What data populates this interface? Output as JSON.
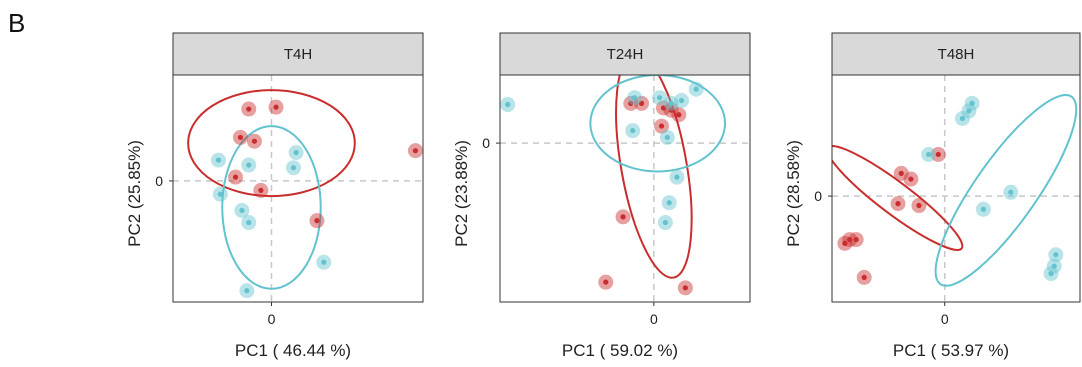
{
  "figure_label": "B",
  "colors": {
    "red": "#c92d2d",
    "cyan": "#62c3cf",
    "strip_bg": "#d9d9d9",
    "ref_line": "#c8c8c8"
  },
  "chart_data": [
    {
      "type": "scatter",
      "title": "T4H",
      "xlabel": "PC1 ( 46.44 %)",
      "ylabel": "PC2  (25.85%)",
      "x_ticks": [
        0
      ],
      "y_ticks": [
        0
      ],
      "xlim": [
        -2.6,
        4.0
      ],
      "ylim": [
        -3.2,
        2.8
      ],
      "grid": false,
      "ref_lines": [
        0,
        0
      ],
      "series": [
        {
          "color": "red",
          "points": [
            [
              -0.6,
              1.9
            ],
            [
              0.12,
              1.95
            ],
            [
              -0.82,
              1.15
            ],
            [
              -0.45,
              1.05
            ],
            [
              -0.95,
              0.1
            ],
            [
              -0.28,
              -0.25
            ],
            [
              1.2,
              -1.05
            ],
            [
              3.8,
              0.8
            ]
          ],
          "ellipse": {
            "cx": 0.0,
            "cy": 1.0,
            "rx": 2.2,
            "ry": 1.4,
            "angle": 0
          }
        },
        {
          "color": "cyan",
          "points": [
            [
              -1.4,
              0.55
            ],
            [
              -0.6,
              0.42
            ],
            [
              0.65,
              0.75
            ],
            [
              0.58,
              0.35
            ],
            [
              -1.35,
              -0.35
            ],
            [
              -0.78,
              -0.78
            ],
            [
              -0.6,
              -1.1
            ],
            [
              1.38,
              -2.15
            ],
            [
              -0.65,
              -2.9
            ]
          ],
          "ellipse": {
            "cx": 0.0,
            "cy": -0.7,
            "rx": 1.3,
            "ry": 2.15,
            "angle": 0
          }
        }
      ]
    },
    {
      "type": "scatter",
      "title": "T24H",
      "xlabel": "PC1 ( 59.02 %)",
      "ylabel": "PC2  (23.88%)",
      "x_ticks": [
        0
      ],
      "y_ticks": [
        0
      ],
      "xlim": [
        -4.0,
        2.5
      ],
      "ylim": [
        -2.8,
        1.2
      ],
      "grid": false,
      "ref_lines": [
        0,
        0
      ],
      "series": [
        {
          "color": "red",
          "points": [
            [
              -0.6,
              0.7
            ],
            [
              -0.32,
              0.7
            ],
            [
              0.25,
              0.62
            ],
            [
              0.45,
              0.58
            ],
            [
              0.65,
              0.5
            ],
            [
              0.2,
              0.3
            ],
            [
              -0.8,
              -1.3
            ],
            [
              -1.25,
              -2.45
            ],
            [
              0.82,
              -2.55
            ]
          ],
          "ellipse": {
            "cx": 0.0,
            "cy": -0.4,
            "rx": 0.85,
            "ry": 2.0,
            "angle": 10
          }
        },
        {
          "color": "cyan",
          "points": [
            [
              -3.8,
              0.68
            ],
            [
              -0.5,
              0.8
            ],
            [
              0.15,
              0.8
            ],
            [
              0.45,
              0.7
            ],
            [
              0.72,
              0.75
            ],
            [
              1.1,
              0.95
            ],
            [
              -0.55,
              0.22
            ],
            [
              0.35,
              0.1
            ],
            [
              0.6,
              -0.6
            ],
            [
              0.4,
              -1.05
            ],
            [
              0.3,
              -1.4
            ]
          ],
          "ellipse": {
            "cx": 0.1,
            "cy": 0.35,
            "rx": 1.75,
            "ry": 0.85,
            "angle": 0
          }
        }
      ]
    },
    {
      "type": "scatter",
      "title": "T48H",
      "xlabel": "PC1 ( 53.97 %)",
      "ylabel": "PC2  (28.58%)",
      "x_ticks": [
        0
      ],
      "y_ticks": [
        0
      ],
      "xlim": [
        -3.5,
        4.2
      ],
      "ylim": [
        -2.8,
        3.2
      ],
      "grid": false,
      "ref_lines": [
        0,
        0
      ],
      "series": [
        {
          "color": "red",
          "points": [
            [
              -3.1,
              -1.25
            ],
            [
              -2.95,
              -1.15
            ],
            [
              -2.75,
              -1.15
            ],
            [
              -2.5,
              -2.15
            ],
            [
              -1.35,
              0.6
            ],
            [
              -1.05,
              0.45
            ],
            [
              -1.45,
              -0.2
            ],
            [
              -0.8,
              -0.25
            ],
            [
              -0.2,
              1.1
            ]
          ],
          "ellipse": {
            "cx": -1.55,
            "cy": -0.05,
            "rx": 2.6,
            "ry": 0.42,
            "angle": -37
          }
        },
        {
          "color": "cyan",
          "points": [
            [
              -0.5,
              1.1
            ],
            [
              0.55,
              2.05
            ],
            [
              0.75,
              2.25
            ],
            [
              0.85,
              2.45
            ],
            [
              2.05,
              0.1
            ],
            [
              1.2,
              -0.35
            ],
            [
              3.45,
              -1.55
            ],
            [
              3.4,
              -1.85
            ],
            [
              3.3,
              -2.05
            ]
          ],
          "ellipse": {
            "cx": 1.9,
            "cy": 0.15,
            "rx": 3.55,
            "ry": 0.82,
            "angle": 55
          }
        }
      ]
    }
  ]
}
